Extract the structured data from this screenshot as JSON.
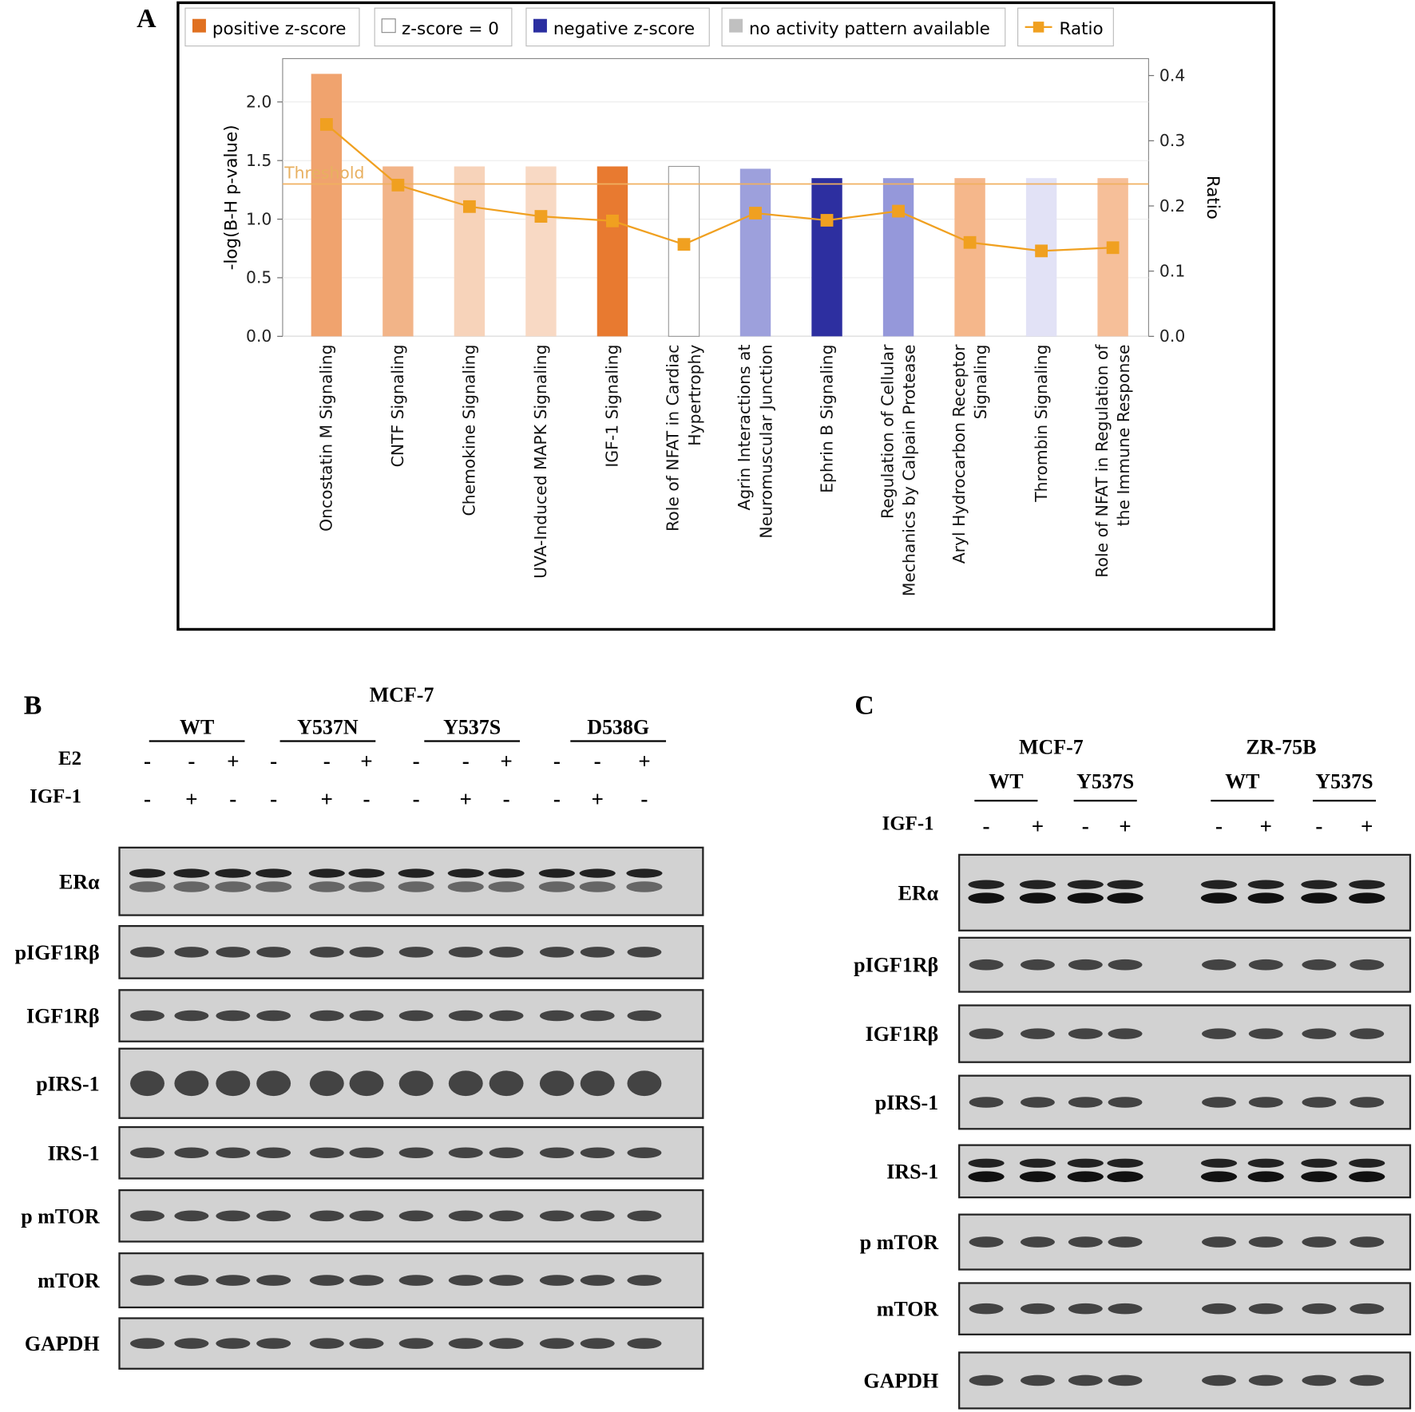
{
  "panel_labels": [
    "A",
    "B",
    "C"
  ],
  "chart_data": {
    "type": "bar",
    "ylabel": "-log(B-H p-value)",
    "y2label": "Ratio",
    "categories": [
      [
        "Oncostatin M Signaling"
      ],
      [
        "CNTF Signaling"
      ],
      [
        "Chemokine Signaling"
      ],
      [
        "UVA-Induced MAPK Signaling"
      ],
      [
        "IGF-1 Signaling"
      ],
      [
        "Role of NFAT in Cardiac",
        "Hypertrophy"
      ],
      [
        "Agrin Interactions at",
        "Neuromuscular Junction"
      ],
      [
        "Ephrin B Signaling"
      ],
      [
        "Regulation of Cellular",
        "Mechanics by Calpain Protease"
      ],
      [
        "Aryl Hydrocarbon Receptor",
        "Signaling"
      ],
      [
        "Thrombin Signaling"
      ],
      [
        "Role of NFAT in Regulation of",
        "the Immune Response"
      ]
    ],
    "values": [
      2.24,
      1.45,
      1.45,
      1.45,
      1.45,
      1.45,
      1.43,
      1.35,
      1.35,
      1.35,
      1.35,
      1.35
    ],
    "colors": [
      "#f0a36e",
      "#f2b488",
      "#f7d3ba",
      "#f8d9c4",
      "#e87a30",
      "#ffffff",
      "#9da0dc",
      "#2d2fa0",
      "#9598da",
      "#f5b78b",
      "#e2e2f6",
      "#f6bf99"
    ],
    "line": {
      "name": "Ratio",
      "color": "#f0a020",
      "axis": "y2",
      "values": [
        0.325,
        0.232,
        0.199,
        0.184,
        0.177,
        0.141,
        0.189,
        0.178,
        0.192,
        0.144,
        0.131,
        0.136
      ]
    },
    "threshold": {
      "label": "Threshold",
      "value": 1.3
    },
    "legend": [
      {
        "label": "positive z-score",
        "color": "#e07020"
      },
      {
        "label": "z-score = 0",
        "color": "#ffffff"
      },
      {
        "label": "negative z-score",
        "color": "#2a2ea0"
      },
      {
        "label": "no activity pattern available",
        "color": "#c0c0c0"
      }
    ],
    "ylim": [
      0,
      2.37
    ],
    "yticks": [
      {
        "value": 0,
        "label": "0.0"
      },
      {
        "value": 0.5,
        "label": "0.5"
      },
      {
        "value": 1,
        "label": "1.0"
      },
      {
        "value": 1.5,
        "label": "1.5"
      },
      {
        "value": 2,
        "label": "2.0"
      }
    ],
    "y2lim": [
      0,
      0.426
    ],
    "y2ticks": [
      {
        "value": 0,
        "label": "0.0"
      },
      {
        "value": 0.1,
        "label": "0.1"
      },
      {
        "value": 0.2,
        "label": "0.2"
      },
      {
        "value": 0.3,
        "label": "0.3"
      },
      {
        "value": 0.4,
        "label": "0.4"
      }
    ]
  },
  "panel_b": {
    "cell_line": "MCF-7",
    "groups": [
      "WT",
      "Y537N",
      "Y537S",
      "D538G"
    ],
    "treatments": [
      {
        "name": "E2",
        "signs": [
          "-",
          "-",
          "+",
          "-",
          "-",
          "+",
          "-",
          "-",
          "+",
          "-",
          "-",
          "+"
        ]
      },
      {
        "name": "IGF-1",
        "signs": [
          "-",
          "+",
          "-",
          "-",
          "+",
          "-",
          "-",
          "+",
          "-",
          "-",
          "+",
          "-"
        ]
      }
    ],
    "blots": [
      "ERα",
      "pIGF1Rβ",
      "IGF1Rβ",
      "pIRS-1",
      "IRS-1",
      "p mTOR",
      "mTOR",
      "GAPDH"
    ]
  },
  "panel_c": {
    "cell_lines": [
      "MCF-7",
      "ZR-75B"
    ],
    "groups": [
      "WT",
      "Y537S",
      "WT",
      "Y537S"
    ],
    "treatments": [
      {
        "name": "IGF-1",
        "signs": [
          "-",
          "+",
          "-",
          "+",
          "-",
          "+",
          "-",
          "+"
        ]
      }
    ],
    "blots": [
      "ERα",
      "pIGF1Rβ",
      "IGF1Rβ",
      "pIRS-1",
      "IRS-1",
      "p mTOR",
      "mTOR",
      "GAPDH"
    ]
  }
}
